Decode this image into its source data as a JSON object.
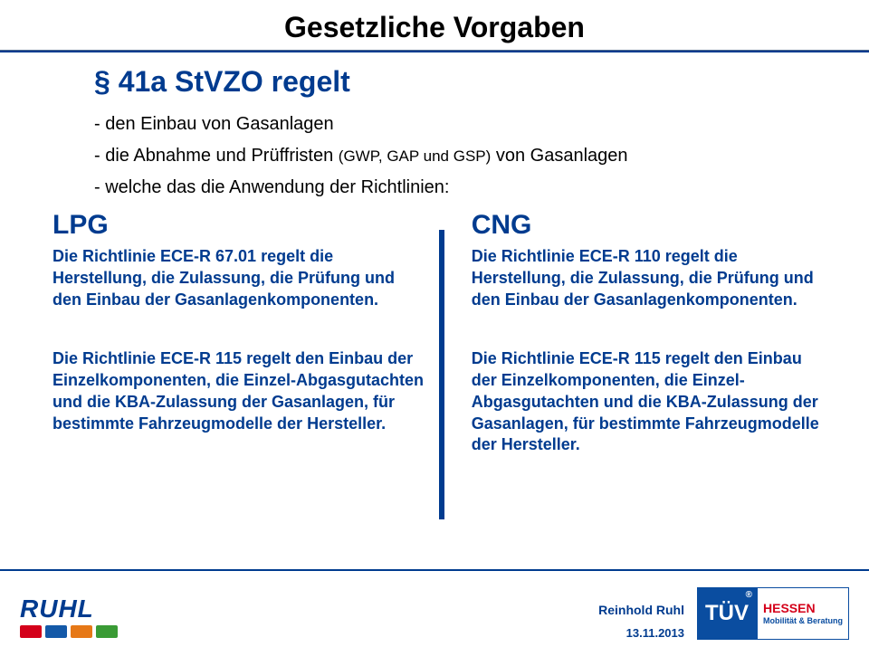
{
  "title": "Gesetzliche Vorgaben",
  "subtitle": "§ 41a StVZO regelt",
  "bullets": {
    "b1": "- den Einbau von Gasanlagen",
    "b2_pre": "- die Abnahme und Prüffristen ",
    "b2_mid": "(GWP, GAP und GSP)",
    "b2_post": " von Gasanlagen",
    "b3": "- welche das die Anwendung der Richtlinien:"
  },
  "left": {
    "head": "LPG",
    "p1": "Die Richtlinie ECE-R 67.01 regelt die Herstellung, die Zulassung, die Prüfung und den Einbau der Gasanlagenkomponenten.",
    "p2": "Die Richtlinie ECE-R 115 regelt den Einbau der Einzelkomponenten, die Einzel-Abgasgutachten und die KBA-Zulassung der Gasanlagen, für bestimmte Fahrzeugmodelle der Hersteller."
  },
  "right": {
    "head": "CNG",
    "p1": "Die Richtlinie ECE-R 110 regelt die Herstellung, die Zulassung, die Prüfung und den Einbau der Gasanlagenkomponenten.",
    "p2": "Die Richtlinie ECE-R 115 regelt den Einbau der Einzelkomponenten, die Einzel-Abgasgutachten und die KBA-Zulassung der Gasanlagen, für bestimmte Fahrzeugmodelle der Hersteller."
  },
  "footer": {
    "ruhl": "RUHL",
    "vehicle_colors": [
      "#d4001a",
      "#1459a8",
      "#e67817",
      "#3a9b35"
    ],
    "presenter": "Reinhold Ruhl",
    "date": "13.11.2013",
    "tuv": "TÜV",
    "hessen": "HESSEN",
    "mob": "Mobilität & Beratung"
  }
}
